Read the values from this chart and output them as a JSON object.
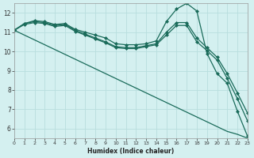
{
  "xlabel": "Humidex (Indice chaleur)",
  "bg_color": "#d4f0f0",
  "grid_color": "#b8dede",
  "line_color": "#1a6b5a",
  "xlim": [
    0,
    23
  ],
  "ylim": [
    5.5,
    12.5
  ],
  "xticks": [
    0,
    1,
    2,
    3,
    4,
    5,
    6,
    7,
    8,
    9,
    10,
    11,
    12,
    13,
    14,
    15,
    16,
    17,
    18,
    19,
    20,
    21,
    22,
    23
  ],
  "yticks": [
    6,
    7,
    8,
    9,
    10,
    11,
    12
  ],
  "series": [
    {
      "x": [
        0,
        1,
        2,
        3,
        4,
        5,
        6,
        7,
        8,
        9,
        10,
        11,
        12,
        13,
        14,
        15,
        16,
        17,
        18,
        19,
        20,
        21,
        22,
        23
      ],
      "y": [
        11.1,
        11.45,
        11.6,
        11.55,
        11.4,
        11.45,
        11.15,
        11.0,
        10.85,
        10.7,
        10.4,
        10.35,
        10.35,
        10.4,
        10.55,
        11.55,
        12.2,
        12.5,
        12.1,
        9.9,
        8.85,
        8.35,
        6.9,
        5.6
      ],
      "marker": "D",
      "markersize": 2.0,
      "linewidth": 0.9
    },
    {
      "x": [
        0,
        1,
        2,
        3,
        4,
        5,
        6,
        7,
        8,
        9,
        10,
        11,
        12,
        13,
        14,
        15,
        16,
        17,
        18,
        19,
        20,
        21,
        22,
        23
      ],
      "y": [
        11.1,
        11.45,
        11.55,
        11.5,
        11.35,
        11.4,
        11.1,
        10.9,
        10.7,
        10.5,
        10.25,
        10.2,
        10.2,
        10.3,
        10.4,
        11.0,
        11.5,
        11.5,
        10.7,
        10.2,
        9.7,
        8.85,
        7.85,
        6.8
      ],
      "marker": "D",
      "markersize": 2.0,
      "linewidth": 0.9
    },
    {
      "x": [
        0,
        1,
        2,
        3,
        4,
        5,
        6,
        7,
        8,
        9,
        10,
        11,
        12,
        13,
        14,
        15,
        16,
        17,
        18,
        19,
        20,
        21,
        22,
        23
      ],
      "y": [
        11.1,
        11.4,
        11.5,
        11.45,
        11.3,
        11.35,
        11.05,
        10.85,
        10.65,
        10.45,
        10.2,
        10.15,
        10.15,
        10.25,
        10.35,
        10.85,
        11.35,
        11.35,
        10.5,
        10.05,
        9.55,
        8.6,
        7.55,
        6.4
      ],
      "marker": "D",
      "markersize": 2.0,
      "linewidth": 0.9
    },
    {
      "x": [
        0,
        1,
        2,
        3,
        4,
        5,
        6,
        7,
        8,
        9,
        10,
        11,
        12,
        13,
        14,
        15,
        16,
        17,
        18,
        19,
        20,
        21,
        22,
        23
      ],
      "y": [
        11.1,
        10.85,
        10.6,
        10.35,
        10.1,
        9.85,
        9.6,
        9.35,
        9.1,
        8.85,
        8.6,
        8.35,
        8.1,
        7.85,
        7.6,
        7.35,
        7.1,
        6.85,
        6.6,
        6.35,
        6.1,
        5.85,
        5.7,
        5.5
      ],
      "marker": null,
      "markersize": 0,
      "linewidth": 0.9
    }
  ]
}
